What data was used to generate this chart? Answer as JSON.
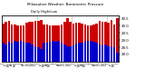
{
  "title": "Milwaukee Weather: Barometric Pressure",
  "subtitle": "Daily High/Low",
  "ylim": [
    27.5,
    30.7
  ],
  "yticks": [
    28.0,
    28.5,
    29.0,
    29.5,
    30.0,
    30.5
  ],
  "ytick_labels": [
    "28.0",
    "28.5",
    "29.0",
    "29.5",
    "30.0",
    "30.5"
  ],
  "bar_width": 0.8,
  "high_color": "#cc0000",
  "low_color": "#0000cc",
  "background_color": "#ffffff",
  "xlabel_fontsize": 2.5,
  "title_fontsize": 3.0,
  "ylabel_fontsize": 2.8,
  "months": [
    "J",
    "F",
    "M",
    "A",
    "M",
    "J",
    "J",
    "A",
    "S",
    "O",
    "N",
    "D",
    "J",
    "F",
    "M",
    "A",
    "M",
    "J",
    "J",
    "A",
    "S",
    "O",
    "N",
    "D",
    "J",
    "F",
    "M",
    "A",
    "M",
    "J",
    "J",
    "A",
    "S",
    "O",
    "N",
    "D",
    "J",
    "F",
    "M",
    "J"
  ],
  "highs": [
    30.15,
    30.25,
    30.35,
    30.1,
    30.1,
    30.05,
    30.0,
    30.05,
    30.2,
    30.25,
    30.3,
    30.35,
    30.35,
    30.4,
    30.1,
    30.1,
    30.05,
    30.0,
    30.05,
    30.0,
    30.1,
    30.25,
    30.55,
    30.3,
    30.15,
    30.2,
    30.2,
    30.15,
    30.1,
    30.0,
    30.05,
    30.1,
    30.15,
    30.35,
    30.3,
    30.25,
    30.2,
    30.4,
    30.1,
    30.55
  ],
  "lows": [
    28.8,
    28.7,
    28.9,
    28.85,
    28.95,
    28.9,
    28.95,
    28.9,
    28.85,
    28.8,
    28.7,
    28.6,
    28.5,
    28.4,
    28.8,
    28.85,
    28.9,
    28.95,
    28.9,
    28.95,
    28.85,
    28.7,
    28.6,
    28.55,
    28.65,
    28.75,
    28.8,
    28.85,
    28.9,
    28.95,
    28.95,
    28.9,
    28.8,
    28.7,
    28.65,
    28.7,
    28.55,
    28.6,
    28.5,
    28.1
  ],
  "year_boundaries": [
    11.5,
    23.5,
    35.5
  ],
  "boundary_color": "#888888"
}
